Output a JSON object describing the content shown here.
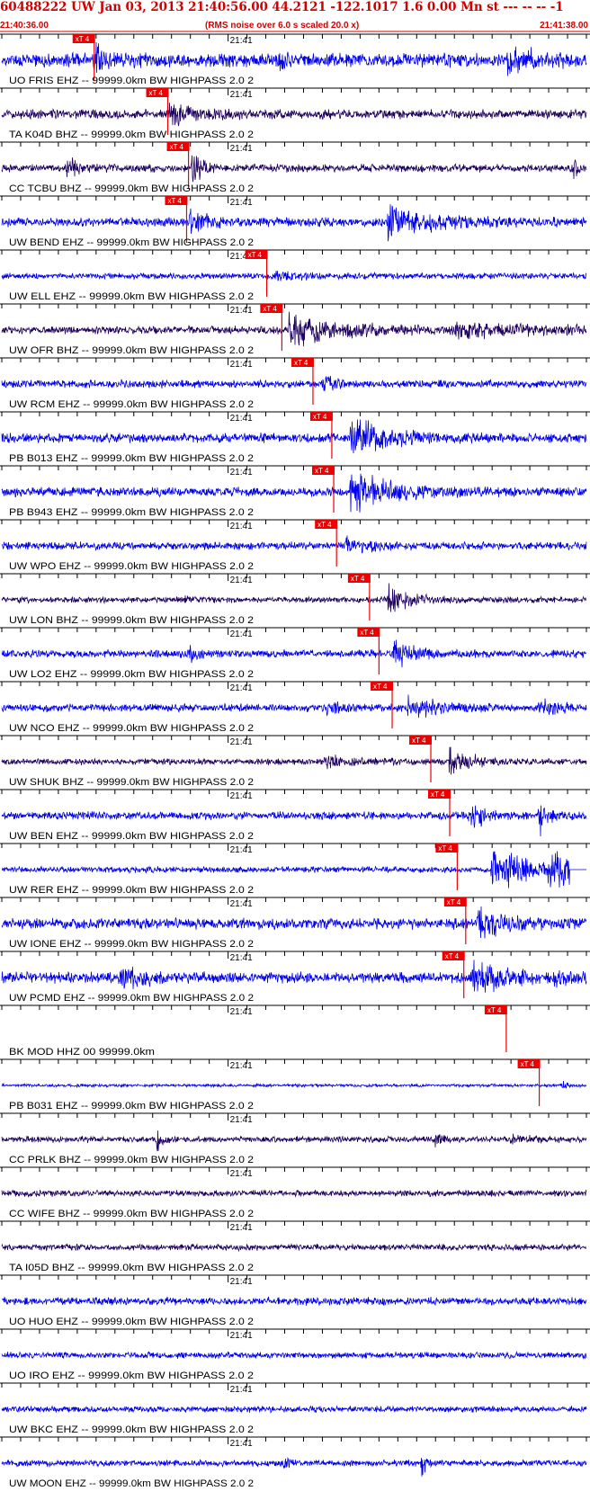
{
  "header": {
    "title": "60488222 UW Jan 03, 2013 21:40:56.00    44.2121 -122.1017  1.6 0.00 Mn st --- -- --   -1",
    "start_time": "21:40:36.00",
    "rms_note": "(RMS noise over 6.0 s scaled 20.0 x)",
    "end_time": "21:41:38.00"
  },
  "colors": {
    "header_text": "#d00000",
    "trace_blue": "#0000ee",
    "trace_dark": "#1e0060",
    "pick_fill": "#ee0000",
    "pick_line": "#ee0000",
    "axis": "#000000"
  },
  "chart_data": {
    "type": "line",
    "title": "60488222 UW Jan 03, 2013 21:40:56.00    44.2121 -122.1017  1.6 0.00 Mn st --- -- --   -1",
    "x_range_seconds": [
      0,
      62
    ],
    "x_start_label": "21:40:36.00",
    "x_end_label": "21:41:38.00",
    "minute_label": "21:41",
    "minute_mark_seconds": 24,
    "tick_interval_seconds": 2,
    "pick_label": "xT 4",
    "grid": false,
    "traces": [
      {
        "label": "UO FRIS EHZ -- 99999.0km BW  HIGHPASS  2.0  2",
        "color": "blue",
        "pick_s": 9.8,
        "amp": 9,
        "events": [
          {
            "t": 9.8,
            "a": 18,
            "d": 1.2
          },
          {
            "t": 29.5,
            "a": 10,
            "d": 0.6
          },
          {
            "t": 53.5,
            "a": 36,
            "d": 1.6
          }
        ]
      },
      {
        "label": "TA K04D BHZ -- 99999.0km BW  HIGHPASS  2.0  2",
        "color": "dark",
        "pick_s": 17.6,
        "amp": 6,
        "events": [
          {
            "t": 17.8,
            "a": 14,
            "d": 2.5
          }
        ]
      },
      {
        "label": "CC TCBU BHZ -- 99999.0km BW  HIGHPASS  2.0  2",
        "color": "dark",
        "pick_s": 19.8,
        "amp": 5,
        "events": [
          {
            "t": 7.0,
            "a": 13,
            "d": 1.5
          },
          {
            "t": 20.2,
            "a": 22,
            "d": 1.0
          },
          {
            "t": 60.5,
            "a": 12,
            "d": 0.8
          }
        ]
      },
      {
        "label": "UW BEND EHZ -- 99999.0km BW  HIGHPASS  2.0  2",
        "color": "blue",
        "pick_s": 19.6,
        "amp": 6,
        "events": [
          {
            "t": 20.0,
            "a": 16,
            "d": 1.5
          },
          {
            "t": 41.0,
            "a": 20,
            "d": 4.5
          }
        ]
      },
      {
        "label": "UW ELL EHZ -- 99999.0km BW  HIGHPASS  2.0  2",
        "color": "blue",
        "pick_s": 28.1,
        "amp": 4,
        "events": [
          {
            "t": 29.0,
            "a": 7,
            "d": 2.0
          }
        ]
      },
      {
        "label": "UW OFR BHZ -- 99999.0km BW  HIGHPASS  2.0  2",
        "color": "dark",
        "pick_s": 29.7,
        "amp": 5,
        "events": [
          {
            "t": 30.5,
            "a": 20,
            "d": 5.5
          },
          {
            "t": 48.0,
            "a": 9,
            "d": 8.0
          }
        ]
      },
      {
        "label": "UW RCM EHZ -- 99999.0km BW  HIGHPASS  2.0  2",
        "color": "blue",
        "pick_s": 33.0,
        "amp": 5,
        "events": [
          {
            "t": 34.0,
            "a": 12,
            "d": 1.2
          }
        ]
      },
      {
        "label": "PB B013 EHZ -- 99999.0km BW  HIGHPASS  2.0  2",
        "color": "blue",
        "pick_s": 35.0,
        "amp": 6,
        "events": [
          {
            "t": 37.0,
            "a": 28,
            "d": 3.5
          }
        ]
      },
      {
        "label": "PB B943 EHZ -- 99999.0km BW  HIGHPASS  2.0  2",
        "color": "blue",
        "pick_s": 35.2,
        "amp": 6,
        "events": [
          {
            "t": 37.0,
            "a": 28,
            "d": 3.5
          }
        ]
      },
      {
        "label": "UW WPO EHZ -- 99999.0km BW  HIGHPASS  2.0  2",
        "color": "blue",
        "pick_s": 35.5,
        "amp": 5,
        "events": [
          {
            "t": 36.5,
            "a": 9,
            "d": 2.5
          }
        ]
      },
      {
        "label": "UW LON BHZ -- 99999.0km BW  HIGHPASS  2.0  2",
        "color": "dark",
        "pick_s": 39.0,
        "amp": 4,
        "events": [
          {
            "t": 19.5,
            "a": 7,
            "d": 1.0
          },
          {
            "t": 41.0,
            "a": 18,
            "d": 2.2
          }
        ]
      },
      {
        "label": "UW LO2 EHZ -- 99999.0km BW  HIGHPASS  2.0  2",
        "color": "blue",
        "pick_s": 40.0,
        "amp": 5,
        "events": [
          {
            "t": 20.0,
            "a": 8,
            "d": 1.0
          },
          {
            "t": 41.5,
            "a": 20,
            "d": 2.0
          }
        ]
      },
      {
        "label": "UW NCO EHZ -- 99999.0km BW  HIGHPASS  2.0  2",
        "color": "blue",
        "pick_s": 41.4,
        "amp": 5,
        "events": [
          {
            "t": 34.5,
            "a": 9,
            "d": 1.5
          },
          {
            "t": 43.0,
            "a": 14,
            "d": 3.0
          },
          {
            "t": 57.0,
            "a": 9,
            "d": 2.5
          }
        ]
      },
      {
        "label": "UW SHUK BHZ -- 99999.0km BW  HIGHPASS  2.0  2",
        "color": "dark",
        "pick_s": 45.5,
        "amp": 4,
        "events": [
          {
            "t": 34.0,
            "a": 7,
            "d": 3.0
          },
          {
            "t": 47.5,
            "a": 20,
            "d": 2.0
          }
        ]
      },
      {
        "label": "UW BEN EHZ -- 99999.0km BW  HIGHPASS  2.0  2",
        "color": "blue",
        "pick_s": 47.5,
        "amp": 5,
        "events": [
          {
            "t": 49.5,
            "a": 24,
            "d": 1.2
          },
          {
            "t": 57.0,
            "a": 22,
            "d": 1.0
          }
        ]
      },
      {
        "label": "UW RER EHZ -- 99999.0km BW  HIGHPASS  2.0  2",
        "color": "blue",
        "pick_s": 48.3,
        "amp": 4,
        "events": [
          {
            "t": 52.0,
            "a": 26,
            "d": 5.0
          },
          {
            "t": 58.0,
            "a": 30,
            "d": 2.0
          }
        ],
        "flat_after_s": 60.2
      },
      {
        "label": "UW IONE EHZ -- 99999.0km BW  HIGHPASS  2.0  2",
        "color": "blue",
        "pick_s": 49.2,
        "amp": 7,
        "events": [
          {
            "t": 50.5,
            "a": 14,
            "d": 3.5
          }
        ]
      },
      {
        "label": "UW PCMD EHZ -- 99999.0km BW  HIGHPASS  2.0  2",
        "color": "blue",
        "pick_s": 49.0,
        "amp": 7,
        "events": [
          {
            "t": 12.5,
            "a": 12,
            "d": 3.0
          },
          {
            "t": 50.0,
            "a": 18,
            "d": 3.5
          },
          {
            "t": 58.5,
            "a": 10,
            "d": 1.2
          }
        ]
      },
      {
        "label": "BK MOD HHZ 00 99999.0km",
        "color": "blue",
        "pick_s": 53.5,
        "amp": 0,
        "events": [],
        "empty": true
      },
      {
        "label": "PB B031 EHZ -- 99999.0km BW  HIGHPASS  2.0  2",
        "color": "blue",
        "pick_s": 57.0,
        "amp": 2,
        "events": [
          {
            "t": 59.5,
            "a": 5,
            "d": 0.6
          }
        ]
      },
      {
        "label": "CC PRLK BHZ -- 99999.0km BW  HIGHPASS  2.0  2",
        "color": "dark",
        "pick_s": null,
        "amp": 4,
        "events": [
          {
            "t": 16.5,
            "a": 16,
            "d": 0.5
          },
          {
            "t": 46.0,
            "a": 10,
            "d": 0.6
          },
          {
            "t": 54.0,
            "a": 7,
            "d": 1.2
          }
        ]
      },
      {
        "label": "CC WIFE BHZ -- 99999.0km BW  HIGHPASS  2.0  2",
        "color": "dark",
        "pick_s": null,
        "amp": 4,
        "events": []
      },
      {
        "label": "TA I05D BHZ -- 99999.0km BW  HIGHPASS  2.0  2",
        "color": "dark",
        "pick_s": null,
        "amp": 4,
        "events": []
      },
      {
        "label": "UO HUO EHZ -- 99999.0km BW  HIGHPASS  2.0  2",
        "color": "blue",
        "pick_s": null,
        "amp": 5,
        "events": []
      },
      {
        "label": "UO IRO EHZ -- 99999.0km BW  HIGHPASS  2.0  2",
        "color": "blue",
        "pick_s": null,
        "amp": 4,
        "events": []
      },
      {
        "label": "UW BKC EHZ -- 99999.0km BW  HIGHPASS  2.0  2",
        "color": "blue",
        "pick_s": null,
        "amp": 4,
        "events": []
      },
      {
        "label": "UW MOON EHZ -- 99999.0km BW  HIGHPASS  2.0  2",
        "color": "blue",
        "pick_s": null,
        "amp": 4,
        "events": [
          {
            "t": 30.0,
            "a": 14,
            "d": 0.4
          },
          {
            "t": 44.5,
            "a": 18,
            "d": 0.4
          }
        ]
      }
    ]
  }
}
